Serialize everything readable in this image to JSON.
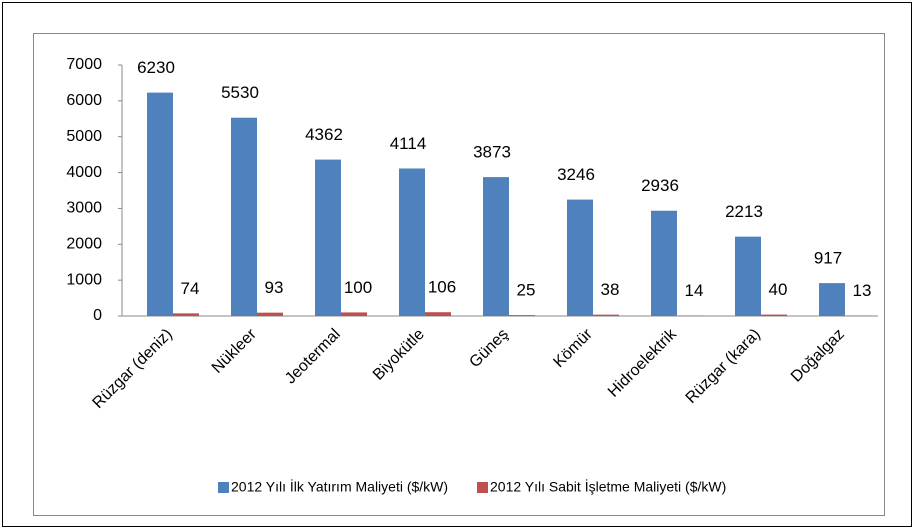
{
  "chart_data": {
    "type": "bar",
    "categories": [
      "Rüzgar (deniz)",
      "Nükleer",
      "Jeotermal",
      "Biyokütle",
      "Güneş",
      "Kömür",
      "Hidroelektrik",
      "Rüzgar  (kara)",
      "Doğalgaz"
    ],
    "series": [
      {
        "name": "2012 Yılı İlk Yatırım Maliyeti ($/kW)",
        "color": "#4f81bd",
        "values": [
          6230,
          5530,
          4362,
          4114,
          3873,
          3246,
          2936,
          2213,
          917
        ]
      },
      {
        "name": "2012 Yılı Sabit İşletme Maliyeti ($/kW)",
        "color": "#c0504d",
        "values": [
          74,
          93,
          100,
          106,
          25,
          38,
          14,
          40,
          13
        ]
      }
    ],
    "ylim": [
      0,
      7000
    ],
    "yticks": [
      0,
      1000,
      2000,
      3000,
      4000,
      5000,
      6000,
      7000
    ],
    "legend": "bottom"
  }
}
